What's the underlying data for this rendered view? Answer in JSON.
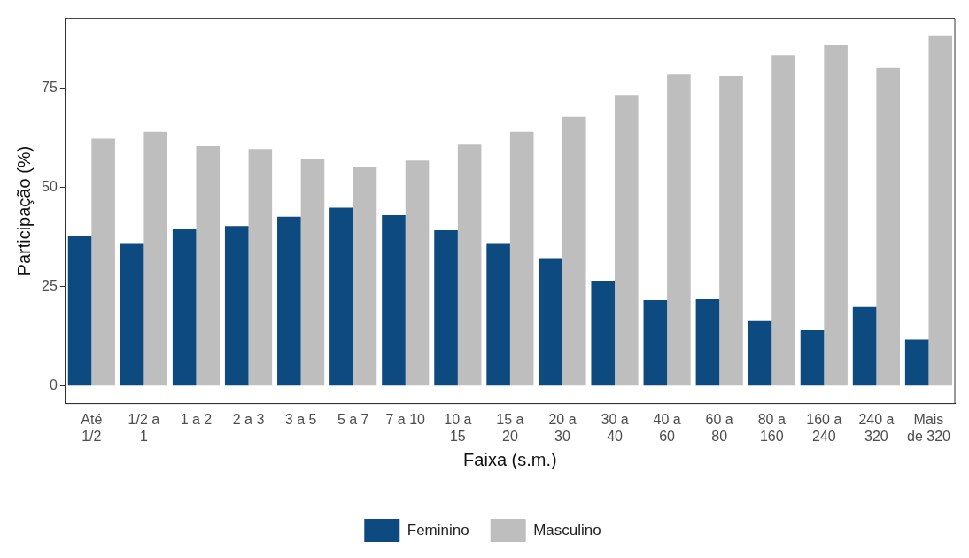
{
  "chart_data": {
    "type": "bar",
    "xlabel": "Faixa (s.m.)",
    "ylabel": "Participação (%)",
    "categories": [
      "Até 1/2",
      "1/2 a 1",
      "1 a 2",
      "2 a 3",
      "3 a 5",
      "5 a 7",
      "7 a 10",
      "10 a 15",
      "15 a 20",
      "20 a 30",
      "30 a 40",
      "40 a 60",
      "60 a 80",
      "80 a 160",
      "160 a 240",
      "240 a 320",
      "Mais de 320"
    ],
    "series": [
      {
        "name": "Feminino",
        "color": "#0d4a80",
        "values": [
          37.7,
          36.0,
          39.6,
          40.3,
          42.6,
          44.9,
          43.0,
          39.2,
          36.0,
          32.2,
          26.5,
          21.6,
          21.8,
          16.5,
          14.0,
          19.9,
          11.7
        ]
      },
      {
        "name": "Masculino",
        "color": "#bebebe",
        "values": [
          62.3,
          64.0,
          60.4,
          59.7,
          57.2,
          55.1,
          56.8,
          60.8,
          64.0,
          67.8,
          73.3,
          78.4,
          78.0,
          83.3,
          85.8,
          80.1,
          88.1
        ]
      }
    ],
    "ylim": [
      -4.4,
      92.6
    ],
    "yticks": [
      0,
      25,
      50,
      75
    ],
    "legend": "bottom"
  }
}
